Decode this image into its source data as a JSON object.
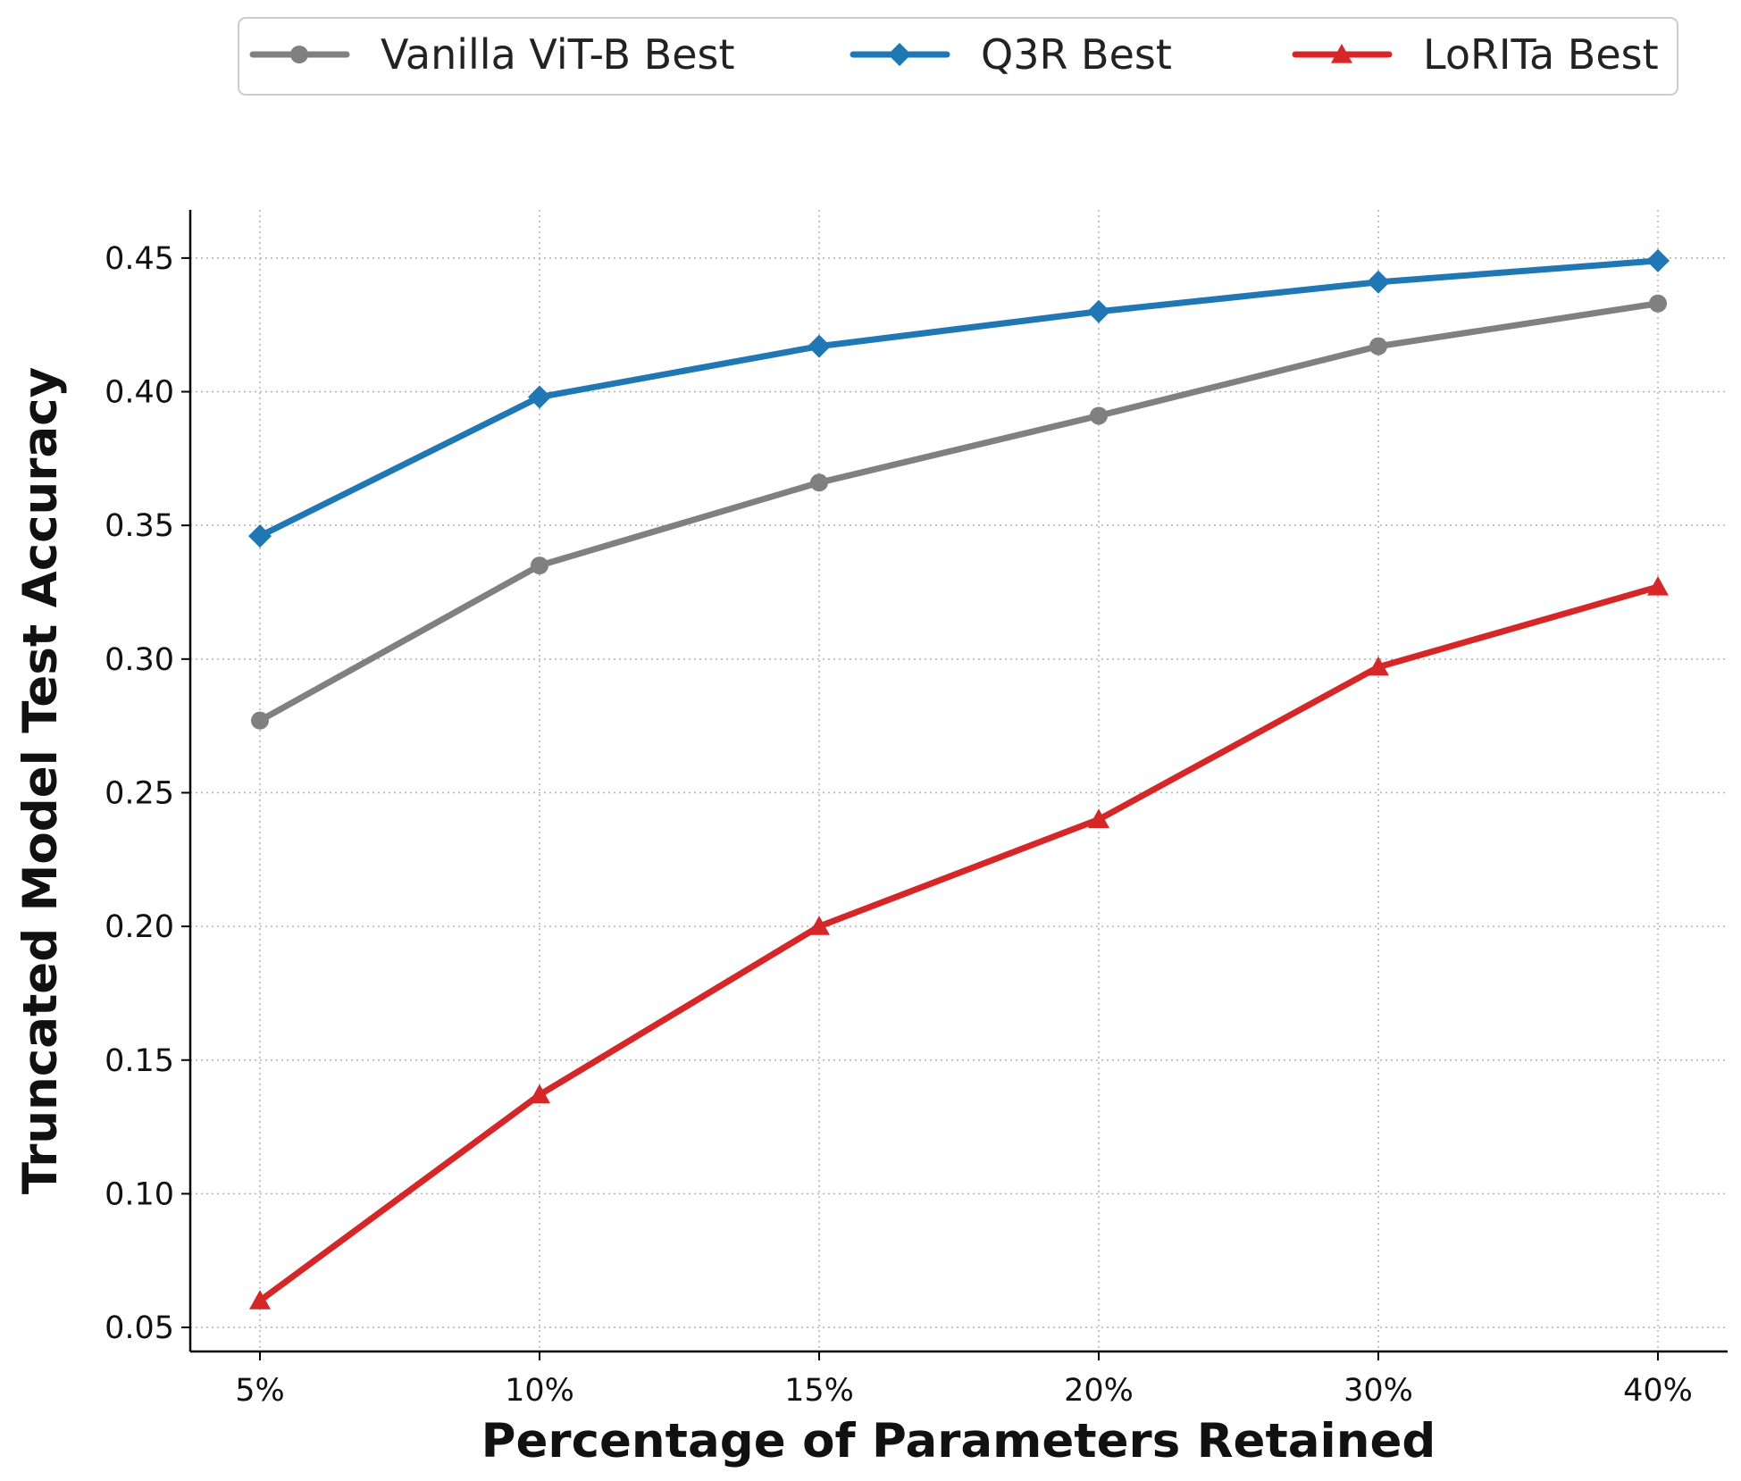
{
  "chart_data": {
    "type": "line",
    "title": "",
    "xlabel": "Percentage of Parameters Retained",
    "ylabel": "Truncated Model Test Accuracy",
    "categories": [
      "5%",
      "10%",
      "15%",
      "20%",
      "30%",
      "40%"
    ],
    "ylim": [
      0.041,
      0.468
    ],
    "yticks": [
      0.05,
      0.1,
      0.15,
      0.2,
      0.25,
      0.3,
      0.35,
      0.4,
      0.45
    ],
    "ytick_labels": [
      "0.05",
      "0.10",
      "0.15",
      "0.20",
      "0.25",
      "0.30",
      "0.35",
      "0.40",
      "0.45"
    ],
    "grid": true,
    "legend_position": "top-center",
    "series": [
      {
        "name": "Vanilla ViT-B Best",
        "color": "#808080",
        "marker": "circle",
        "values": [
          0.277,
          0.335,
          0.366,
          0.391,
          0.417,
          0.433
        ]
      },
      {
        "name": "Q3R Best",
        "color": "#1f77b4",
        "marker": "diamond",
        "values": [
          0.346,
          0.398,
          0.417,
          0.43,
          0.441,
          0.449
        ]
      },
      {
        "name": "LoRITa Best",
        "color": "#d62728",
        "marker": "triangle",
        "values": [
          0.06,
          0.137,
          0.2,
          0.24,
          0.297,
          0.327
        ]
      }
    ]
  }
}
